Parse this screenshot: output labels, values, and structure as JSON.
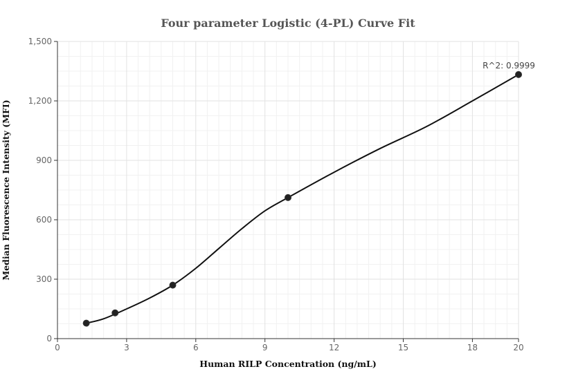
{
  "chart_data": {
    "type": "scatter",
    "title": "Four parameter Logistic (4-PL) Curve Fit",
    "xlabel": "Human RILP Concentration (ng/mL)",
    "ylabel": "Median Fluorescence Intensity (MFI)",
    "xlim": [
      0,
      20
    ],
    "ylim": [
      0,
      1500
    ],
    "x_ticks": [
      0,
      3,
      6,
      9,
      12,
      15,
      18,
      20
    ],
    "x_tick_labels": [
      "0",
      "3",
      "6",
      "9",
      "12",
      "15",
      "18",
      "20"
    ],
    "y_ticks": [
      0,
      300,
      600,
      900,
      1200,
      1500
    ],
    "y_tick_labels": [
      "0",
      "300",
      "600",
      "900",
      "1,200",
      "1,500"
    ],
    "grid": true,
    "legend": "none",
    "series": [
      {
        "points": [
          {
            "x": 1.25,
            "y": 78
          },
          {
            "x": 2.5,
            "y": 130
          },
          {
            "x": 5,
            "y": 270
          },
          {
            "x": 10,
            "y": 712
          },
          {
            "x": 20,
            "y": 1333
          }
        ],
        "color": "#222222"
      }
    ],
    "fit_curve": {
      "x": [
        1.25,
        2.0,
        3.0,
        4.0,
        5.0,
        6.0,
        7.0,
        8.0,
        9.0,
        10.0,
        12.0,
        14.0,
        16.0,
        18.0,
        20.0
      ],
      "y": [
        78,
        100,
        150,
        205,
        270,
        355,
        455,
        555,
        645,
        712,
        840,
        960,
        1070,
        1200,
        1333
      ],
      "color": "#111111"
    },
    "annotations": [
      {
        "text": "R^2: 0.9999",
        "x": 20,
        "y": 1333
      }
    ]
  }
}
